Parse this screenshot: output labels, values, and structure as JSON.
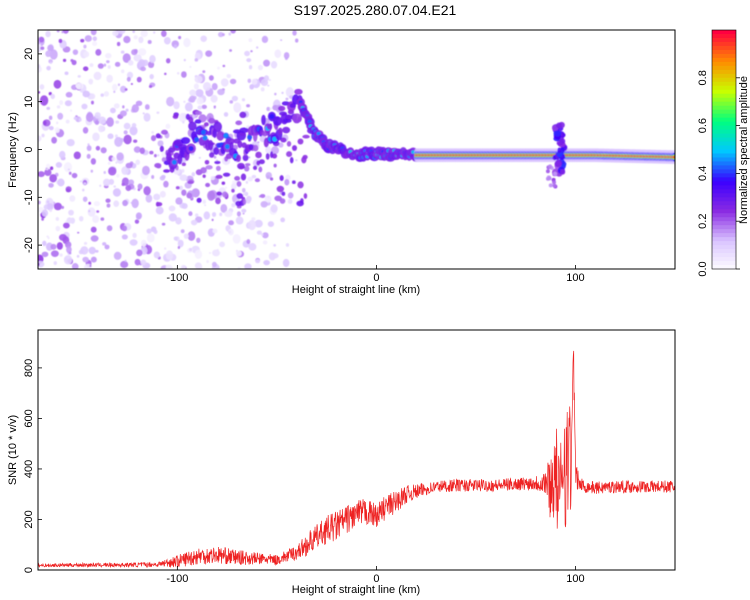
{
  "title": "S197.2025.280.07.04.E21",
  "chart_data": [
    {
      "type": "heatmap",
      "title": "S197.2025.280.07.04.E21",
      "xlabel": "Height of straight line (km)",
      "ylabel": "Frequency (Hz)",
      "xlim": [
        -170,
        150
      ],
      "ylim": [
        -25,
        25
      ],
      "xticks": [
        -100,
        0,
        100
      ],
      "xtick_labels": [
        "-100",
        "0",
        "100"
      ],
      "yticks": [
        -20,
        -10,
        0,
        10,
        20
      ],
      "ytick_labels": [
        "-20",
        "-10",
        "0",
        "10",
        "20"
      ],
      "colorbar": {
        "label": "Normalized spectral amplitude",
        "range": [
          0,
          1
        ],
        "ticks": [
          0,
          0.2,
          0.4,
          0.6,
          0.8
        ],
        "tick_labels": [
          "0.0",
          "0.2",
          "0.4",
          "0.6",
          "0.8"
        ],
        "colormap": [
          "#ffffff",
          "#d9c4ff",
          "#8a2be2",
          "#3a00ff",
          "#00c8ff",
          "#00ff80",
          "#c8ff00",
          "#ff8c00",
          "#ff0040"
        ]
      },
      "features": [
        {
          "name": "diffuse scatter",
          "x_range": [
            -170,
            -40
          ],
          "y_range": [
            -25,
            25
          ],
          "amplitude": 0.1
        },
        {
          "name": "rising tone",
          "points": [
            [
              -105,
              -3
            ],
            [
              -90,
              3
            ],
            [
              -70,
              1
            ],
            [
              -50,
              5
            ],
            [
              -38,
              10
            ]
          ],
          "amplitude": 0.3
        },
        {
          "name": "descending arm",
          "points": [
            [
              -38,
              10
            ],
            [
              -32,
              4
            ],
            [
              -25,
              1
            ],
            [
              -10,
              -1
            ],
            [
              0,
              -1
            ],
            [
              20,
              -1
            ]
          ],
          "amplitude": 0.45
        },
        {
          "name": "steady tone",
          "x_range": [
            20,
            150
          ],
          "y_center": -1.2,
          "amplitude": 0.95
        },
        {
          "name": "disturbance",
          "x_center": 92,
          "y_range": [
            -5,
            6
          ],
          "amplitude": 0.4
        }
      ]
    },
    {
      "type": "line",
      "xlabel": "Height of straight line (km)",
      "ylabel": "SNR (10 * v/v)",
      "xlim": [
        -170,
        150
      ],
      "ylim": [
        0,
        950
      ],
      "xticks": [
        -100,
        0,
        100
      ],
      "xtick_labels": [
        "-100",
        "0",
        "100"
      ],
      "yticks": [
        0,
        200,
        400,
        600,
        800
      ],
      "ytick_labels": [
        "0",
        "200",
        "400",
        "600",
        "800"
      ],
      "color": "#ee2222",
      "series": [
        {
          "name": "SNR",
          "x": [
            -170,
            -150,
            -130,
            -110,
            -100,
            -90,
            -80,
            -70,
            -60,
            -50,
            -45,
            -40,
            -35,
            -30,
            -25,
            -20,
            -15,
            -10,
            -5,
            0,
            5,
            10,
            15,
            20,
            25,
            30,
            40,
            50,
            60,
            70,
            80,
            85,
            88,
            90,
            92,
            94,
            96,
            97,
            98,
            99,
            100,
            102,
            105,
            110,
            120,
            130,
            140,
            150
          ],
          "values": [
            18,
            20,
            20,
            22,
            35,
            55,
            60,
            50,
            45,
            40,
            55,
            70,
            100,
            130,
            160,
            175,
            200,
            220,
            230,
            215,
            250,
            270,
            300,
            310,
            320,
            330,
            335,
            335,
            335,
            340,
            345,
            350,
            330,
            400,
            260,
            500,
            350,
            600,
            300,
            900,
            380,
            340,
            330,
            325,
            330,
            330,
            330,
            330
          ],
          "noise": [
            6,
            8,
            8,
            10,
            25,
            35,
            35,
            30,
            25,
            20,
            25,
            30,
            45,
            50,
            55,
            60,
            55,
            55,
            55,
            45,
            50,
            45,
            35,
            30,
            25,
            25,
            25,
            25,
            25,
            25,
            30,
            60,
            150,
            200,
            180,
            250,
            300,
            200,
            250,
            100,
            60,
            30,
            25,
            25,
            25,
            25,
            25,
            25
          ]
        }
      ]
    }
  ]
}
